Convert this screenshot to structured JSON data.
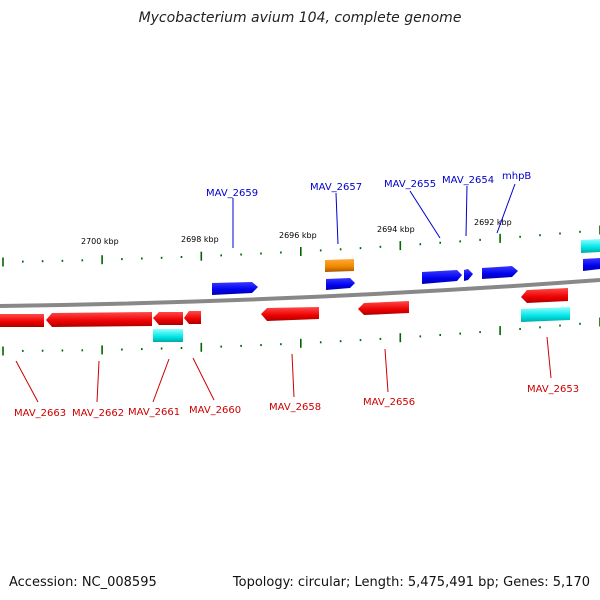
{
  "title": "Mycobacterium avium 104, complete genome",
  "footer": {
    "accession": "Accession: NC_008595",
    "summary": "Topology: circular; Length: 5,475,491 bp; Genes: 5,170"
  },
  "scale_labels": [
    "2700 kbp",
    "2698 kbp",
    "2696 kbp",
    "2694 kbp",
    "2692 kbp"
  ],
  "genes_plus": [
    "MAV_2659",
    "MAV_2657",
    "MAV_2655",
    "MAV_2654",
    "mhpB"
  ],
  "genes_minus": [
    "MAV_2663",
    "MAV_2662",
    "MAV_2661",
    "MAV_2660",
    "MAV_2658",
    "MAV_2656",
    "MAV_2653"
  ],
  "colors": {
    "plus_strand": "#0000ee",
    "minus_strand": "#ee0000",
    "rna": "#00dddd",
    "other": "#ee8800",
    "backbone": "#808080",
    "ticks": "#006600",
    "label_blue": "#0000cc",
    "label_red": "#cc0000"
  }
}
